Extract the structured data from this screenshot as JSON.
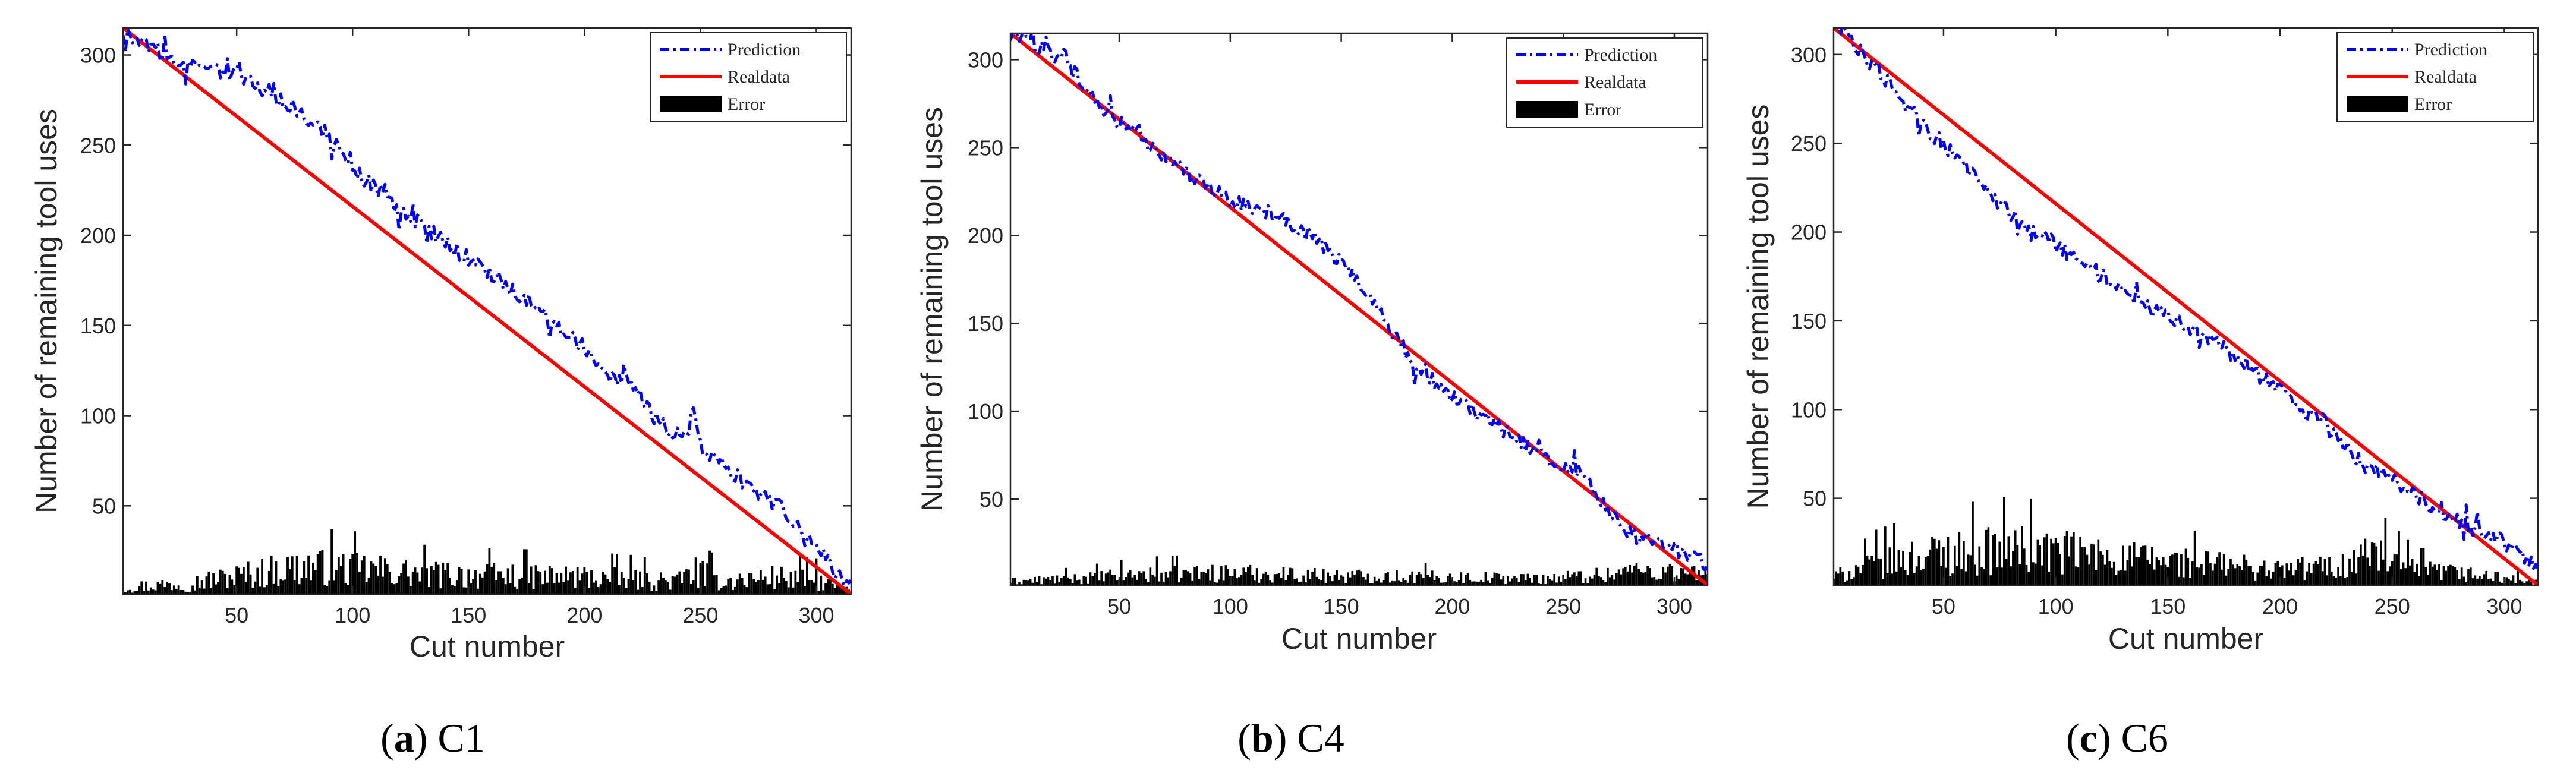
{
  "figure": {
    "captions": [
      {
        "letter": "a",
        "label": "C1"
      },
      {
        "letter": "b",
        "label": "C4"
      },
      {
        "letter": "c",
        "label": "C6"
      }
    ]
  },
  "chart_data": [
    {
      "id": "C1",
      "type": "line",
      "title": "",
      "xlabel": "Cut number",
      "ylabel": "Number of remaining tool uses",
      "xlim": [
        1,
        315
      ],
      "ylim": [
        1,
        315
      ],
      "xticks": [
        50,
        100,
        150,
        200,
        250,
        300
      ],
      "yticks": [
        50,
        100,
        150,
        200,
        250,
        300
      ],
      "legend": {
        "location": "top-right",
        "entries": [
          "Prediction",
          "Realdata",
          "Error"
        ]
      },
      "series": [
        {
          "name": "Prediction",
          "style": "dash-dot",
          "color": "#0000ff",
          "anchors": [
            [
              1,
              312
            ],
            [
              20,
              300
            ],
            [
              30,
              293
            ],
            [
              50,
              289
            ],
            [
              70,
              275
            ],
            [
              90,
              255
            ],
            [
              100,
              237
            ],
            [
              120,
              215
            ],
            [
              140,
              196
            ],
            [
              160,
              178
            ],
            [
              180,
              160
            ],
            [
              200,
              137
            ],
            [
              210,
              121
            ],
            [
              220,
              118
            ],
            [
              230,
              98
            ],
            [
              240,
              89
            ],
            [
              245,
              92
            ],
            [
              247,
              107
            ],
            [
              250,
              84
            ],
            [
              270,
              61
            ],
            [
              285,
              48
            ],
            [
              290,
              40
            ],
            [
              300,
              27
            ],
            [
              305,
              20
            ],
            [
              310,
              10
            ],
            [
              315,
              5
            ]
          ]
        },
        {
          "name": "Realdata",
          "style": "solid",
          "color": "#ff0000",
          "x": [
            1,
            315
          ],
          "y": [
            315,
            1
          ]
        },
        {
          "name": "Error",
          "style": "bar",
          "color": "#000000",
          "anchors": [
            [
              1,
              6
            ],
            [
              30,
              9
            ],
            [
              60,
              16
            ],
            [
              80,
              20
            ],
            [
              100,
              19
            ],
            [
              130,
              15
            ],
            [
              160,
              14
            ],
            [
              200,
              13
            ],
            [
              220,
              12
            ],
            [
              240,
              10
            ],
            [
              247,
              17
            ],
            [
              260,
              10
            ],
            [
              280,
              13
            ],
            [
              300,
              11
            ],
            [
              315,
              3
            ]
          ]
        }
      ]
    },
    {
      "id": "C4",
      "type": "line",
      "title": "",
      "xlabel": "Cut number",
      "ylabel": "Number of remaining tool uses",
      "xlim": [
        1,
        315
      ],
      "ylim": [
        1,
        315
      ],
      "xticks": [
        50,
        100,
        150,
        200,
        250,
        300
      ],
      "yticks": [
        50,
        100,
        150,
        200,
        250,
        300
      ],
      "legend": {
        "location": "top-right",
        "entries": [
          "Prediction",
          "Realdata",
          "Error"
        ]
      },
      "series": [
        {
          "name": "Prediction",
          "style": "dash-dot",
          "color": "#0000ff",
          "anchors": [
            [
              1,
              315
            ],
            [
              25,
              300
            ],
            [
              40,
              275
            ],
            [
              60,
              255
            ],
            [
              80,
              235
            ],
            [
              100,
              220
            ],
            [
              110,
              215
            ],
            [
              120,
              212
            ],
            [
              140,
              197
            ],
            [
              160,
              172
            ],
            [
              170,
              150
            ],
            [
              180,
              132
            ],
            [
              200,
              108
            ],
            [
              220,
              92
            ],
            [
              240,
              75
            ],
            [
              260,
              63
            ],
            [
              270,
              45
            ],
            [
              280,
              30
            ],
            [
              300,
              22
            ],
            [
              315,
              14
            ]
          ]
        },
        {
          "name": "Realdata",
          "style": "solid",
          "color": "#ff0000",
          "x": [
            1,
            315
          ],
          "y": [
            315,
            1
          ]
        },
        {
          "name": "Error",
          "style": "bar",
          "color": "#000000",
          "anchors": [
            [
              1,
              4
            ],
            [
              30,
              6
            ],
            [
              60,
              9
            ],
            [
              100,
              10
            ],
            [
              150,
              8
            ],
            [
              200,
              7
            ],
            [
              240,
              6
            ],
            [
              270,
              9
            ],
            [
              280,
              12
            ],
            [
              300,
              11
            ],
            [
              315,
              8
            ]
          ]
        }
      ]
    },
    {
      "id": "C6",
      "type": "line",
      "title": "",
      "xlabel": "Cut number",
      "ylabel": "Number of remaining tool uses",
      "xlim": [
        1,
        315
      ],
      "ylim": [
        1,
        315
      ],
      "xticks": [
        50,
        100,
        150,
        200,
        250,
        300
      ],
      "yticks": [
        50,
        100,
        150,
        200,
        250,
        300
      ],
      "legend": {
        "location": "top-right",
        "entries": [
          "Prediction",
          "Realdata",
          "Error"
        ]
      },
      "series": [
        {
          "name": "Prediction",
          "style": "dash-dot",
          "color": "#0000ff",
          "anchors": [
            [
              1,
              318
            ],
            [
              20,
              292
            ],
            [
              40,
              262
            ],
            [
              60,
              236
            ],
            [
              80,
              210
            ],
            [
              100,
              192
            ],
            [
              120,
              176
            ],
            [
              140,
              158
            ],
            [
              160,
              146
            ],
            [
              180,
              130
            ],
            [
              200,
              110
            ],
            [
              220,
              93
            ],
            [
              235,
              70
            ],
            [
              250,
              60
            ],
            [
              260,
              52
            ],
            [
              270,
              42
            ],
            [
              280,
              37
            ],
            [
              300,
              25
            ],
            [
              310,
              16
            ],
            [
              315,
              8
            ]
          ]
        },
        {
          "name": "Realdata",
          "style": "solid",
          "color": "#ff0000",
          "x": [
            1,
            315
          ],
          "y": [
            315,
            1
          ]
        },
        {
          "name": "Error",
          "style": "bar",
          "color": "#000000",
          "anchors": [
            [
              1,
              7
            ],
            [
              20,
              17
            ],
            [
              50,
              24
            ],
            [
              80,
              27
            ],
            [
              100,
              25
            ],
            [
              130,
              20
            ],
            [
              160,
              17
            ],
            [
              200,
              12
            ],
            [
              230,
              15
            ],
            [
              240,
              25
            ],
            [
              260,
              12
            ],
            [
              290,
              8
            ],
            [
              315,
              3
            ]
          ]
        }
      ]
    }
  ]
}
